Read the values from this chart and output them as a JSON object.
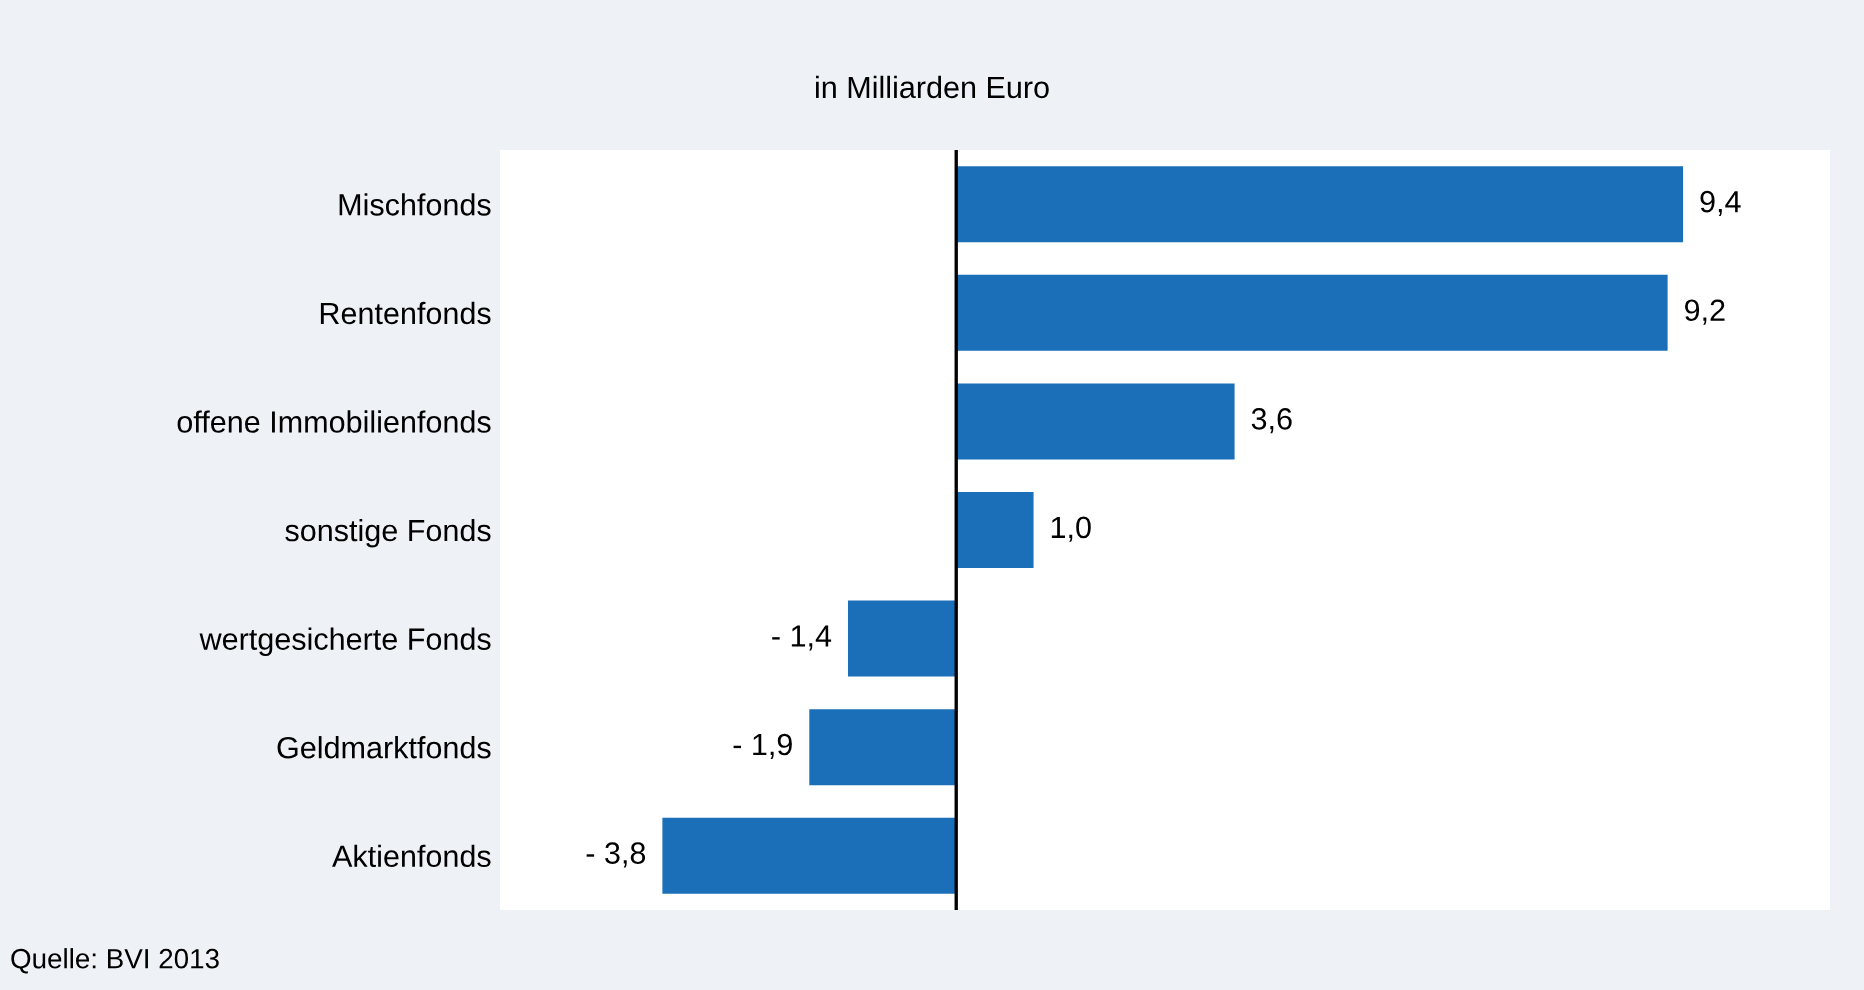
{
  "chart_data": {
    "type": "bar",
    "orientation": "horizontal",
    "subtitle": "in Milliarden Euro",
    "categories": [
      "Mischfonds",
      "Rentenfonds",
      "offene Immobilienfonds",
      "sonstige Fonds",
      "wertgesicherte Fonds",
      "Geldmarktfonds",
      "Aktienfonds"
    ],
    "values": [
      9.4,
      9.2,
      3.6,
      1.0,
      -1.4,
      -1.9,
      -3.8
    ],
    "value_labels": [
      "9,4",
      "9,2",
      "3,6",
      "1,0",
      "- 1,4",
      "- 1,9",
      "- 3,8"
    ],
    "color": "#1a6fb8",
    "xlim": [
      -5.9,
      11.3
    ],
    "tick_labels": "y",
    "grid": false,
    "annotations": [
      "Quelle: BVI 2013"
    ]
  }
}
